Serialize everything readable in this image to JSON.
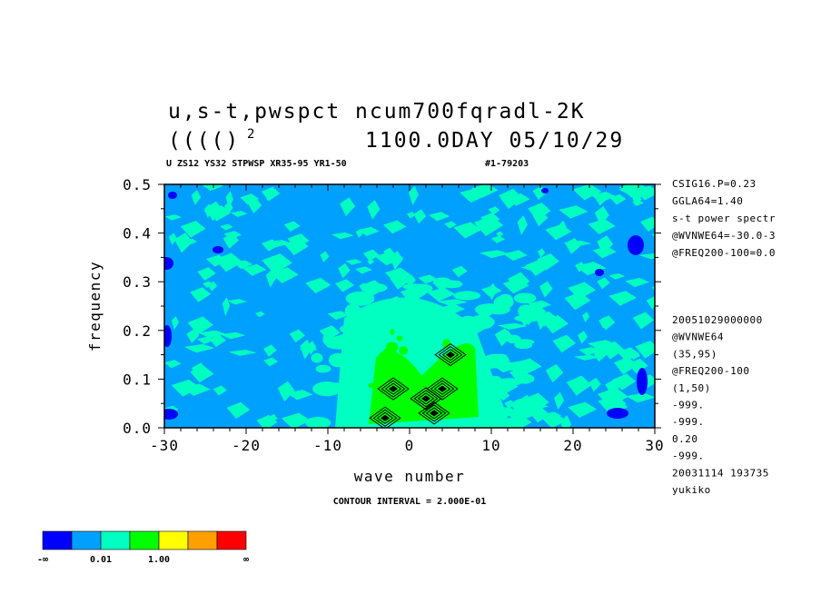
{
  "header": {
    "title_line1": "u,s-t,pwspct  ncum700fqradl-2K",
    "title_line2_left": "(((()",
    "title_line2_sup": "2",
    "title_line2_right": "1100.0DAY 05/10/29",
    "subheader_left": "U ZS12 YS32 STPWSP XR35-95 YR1-50",
    "subheader_right": "#1-79203"
  },
  "side_info": {
    "top": [
      "CSIG16.P=0.23",
      "GGLA64=1.40",
      "s-t power spectr",
      "@WVNWE64=-30.0-3",
      "@FREQ200-100=0.0"
    ],
    "bottom": [
      "20051029000000",
      "@WVNWE64",
      "(35,95)",
      "@FREQ200-100",
      "(1,50)",
      "-999.",
      "-999.",
      "0.20",
      "-999.",
      "20031114 193735",
      "yukiko"
    ]
  },
  "footer": {
    "contour_interval": "CONTOUR INTERVAL = 2.000E-01"
  },
  "colors": {
    "dark_blue": "#0000ff",
    "blue": "#00a0ff",
    "aqua": "#00ffc0",
    "green": "#00ff00",
    "yellow": "#ffff00",
    "orange": "#ffa000",
    "red": "#ff0000"
  },
  "colorbar": {
    "labels": [
      "-∞",
      "0.01",
      "1.00",
      "∞"
    ]
  },
  "chart_data": {
    "type": "heatmap",
    "title": "u,s-t,pwspct  ncum700fqradl-2K",
    "xlabel": "wave number",
    "ylabel": "frequency",
    "xlim": [
      -30,
      30
    ],
    "ylim": [
      0,
      0.5
    ],
    "x_ticks": [
      "-30",
      "-20",
      "-10",
      "0",
      "10",
      "20",
      "30"
    ],
    "y_ticks": [
      "0.0",
      "0.1",
      "0.2",
      "0.3",
      "0.4",
      "0.5"
    ],
    "background_class": "0.01-1.00 (blue)",
    "regions": [
      {
        "class": "aqua",
        "x": [
          -8,
          8
        ],
        "y": [
          0.0,
          0.3
        ],
        "note": "broad band around wave number 0"
      },
      {
        "class": "green",
        "x": [
          -5,
          8
        ],
        "y": [
          0.0,
          0.2
        ],
        "note": "peak power near low frequency"
      }
    ],
    "contour_maxima": [
      {
        "x": -3,
        "y": 0.02
      },
      {
        "x": -2,
        "y": 0.08
      },
      {
        "x": 2,
        "y": 0.06
      },
      {
        "x": 4,
        "y": 0.08
      },
      {
        "x": 5,
        "y": 0.15
      },
      {
        "x": 3,
        "y": 0.03
      }
    ],
    "contour_interval": 0.2
  }
}
